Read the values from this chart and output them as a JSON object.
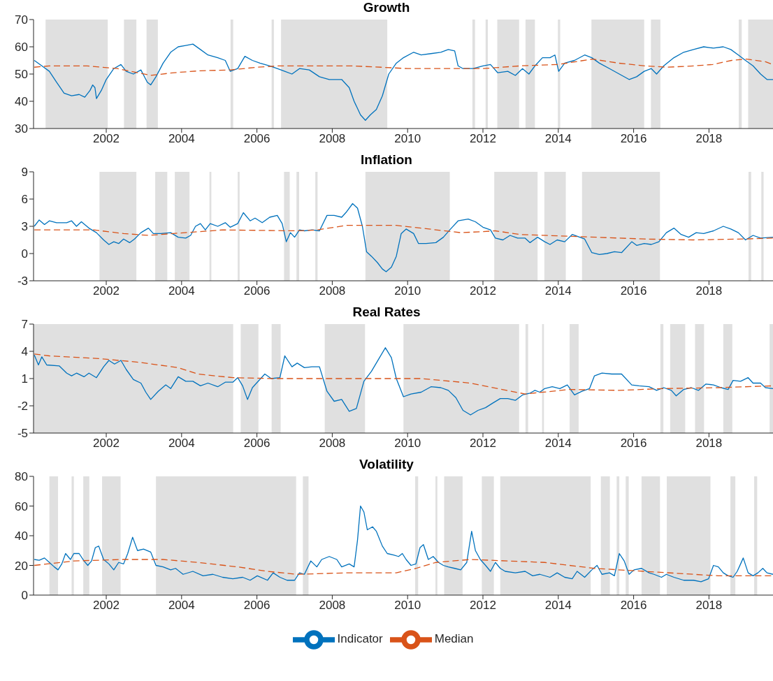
{
  "chart_data": [
    {
      "type": "line",
      "title": "Growth",
      "xlim": [
        2000.07,
        2019.7
      ],
      "xticks": [
        2002,
        2004,
        2006,
        2008,
        2010,
        2012,
        2014,
        2016,
        2018
      ],
      "ylim": [
        30,
        70
      ],
      "yticks": [
        30,
        40,
        50,
        60,
        70
      ],
      "series": [
        {
          "color": "#0072bd",
          "line_style": "solid",
          "x": [
            2000.09,
            2000.29,
            2000.49,
            2000.68,
            2000.88,
            2001.08,
            2001.28,
            2001.43,
            2001.57,
            2001.64,
            2001.7,
            2001.74,
            2001.87,
            2002.0,
            2002.2,
            2002.39,
            2002.53,
            2002.72,
            2002.92,
            2003.09,
            2003.18,
            2003.32,
            2003.51,
            2003.71,
            2003.91,
            2004.11,
            2004.3,
            2004.5,
            2004.7,
            2004.96,
            2005.16,
            2005.29,
            2005.49,
            2005.68,
            2005.88,
            2006.08,
            2006.34,
            2006.54,
            2006.74,
            2006.93,
            2007.13,
            2007.39,
            2007.66,
            2007.92,
            2008.25,
            2008.45,
            2008.58,
            2008.75,
            2008.88,
            2009.01,
            2009.17,
            2009.33,
            2009.5,
            2009.7,
            2009.89,
            2010.16,
            2010.36,
            2010.62,
            2010.88,
            2011.08,
            2011.25,
            2011.34,
            2011.47,
            2011.74,
            2012.0,
            2012.2,
            2012.39,
            2012.66,
            2012.86,
            2013.05,
            2013.22,
            2013.38,
            2013.58,
            2013.78,
            2013.91,
            2014.01,
            2014.17,
            2014.43,
            2014.7,
            2014.89,
            2015.09,
            2015.36,
            2015.62,
            2015.88,
            2016.08,
            2016.28,
            2016.47,
            2016.61,
            2016.8,
            2017.07,
            2017.33,
            2017.59,
            2017.86,
            2018.12,
            2018.38,
            2018.58,
            2018.78,
            2018.97,
            2019.17,
            2019.37,
            2019.54,
            2019.7
          ],
          "values": [
            55,
            53,
            51,
            47,
            43,
            42,
            42.5,
            41.5,
            44,
            46,
            45,
            41,
            44,
            48,
            52,
            53.5,
            51,
            50,
            51.5,
            47,
            46,
            49,
            54,
            58,
            60,
            60.5,
            61,
            59,
            57,
            56,
            55,
            51,
            52,
            56.5,
            55,
            54,
            53,
            52,
            51,
            50,
            52,
            51.5,
            49,
            48,
            48,
            45,
            40,
            35,
            33,
            35,
            37,
            42,
            50,
            54,
            56,
            58,
            57,
            57.5,
            58,
            59,
            58.5,
            53,
            52,
            52,
            53,
            53.5,
            50.5,
            51,
            49.5,
            52,
            50,
            53,
            56,
            56,
            57,
            51,
            54,
            55,
            57,
            56,
            54,
            52,
            50,
            48,
            49,
            51,
            52,
            50,
            53,
            56,
            58,
            59,
            60,
            59.5,
            60,
            59,
            57,
            55,
            53,
            50,
            48,
            48
          ]
        },
        {
          "color": "#d95319",
          "line_style": "dashed",
          "x": [
            2000.09,
            2000.49,
            2001.49,
            2002.3,
            2003.18,
            2003.8,
            2004.5,
            2005.3,
            2006.0,
            2006.6,
            2008.5,
            2009.3,
            2010.0,
            2012.0,
            2013.0,
            2014.0,
            2014.9,
            2015.6,
            2016.3,
            2016.9,
            2017.6,
            2018.1,
            2018.6,
            2019.0,
            2019.5,
            2019.7
          ],
          "values": [
            52.5,
            53,
            53,
            52,
            49.5,
            50.5,
            51.2,
            51.5,
            52.5,
            53,
            53,
            52.5,
            52,
            52,
            53,
            53.5,
            55.5,
            54,
            53,
            52.5,
            53,
            53.5,
            55,
            55.5,
            54.5,
            53.5
          ]
        }
      ],
      "bands": [
        {
          "axis": "x",
          "from": 2000.39,
          "to": 2002.04
        },
        {
          "axis": "x",
          "from": 2002.47,
          "to": 2002.8
        },
        {
          "axis": "x",
          "from": 2003.07,
          "to": 2003.37
        },
        {
          "axis": "x",
          "from": 2005.3,
          "to": 2005.37
        },
        {
          "axis": "x",
          "from": 2006.39,
          "to": 2006.45
        },
        {
          "axis": "x",
          "from": 2006.64,
          "to": 2009.46
        },
        {
          "axis": "x",
          "from": 2011.72,
          "to": 2011.79
        },
        {
          "axis": "x",
          "from": 2012.07,
          "to": 2012.13
        },
        {
          "axis": "x",
          "from": 2012.38,
          "to": 2012.96
        },
        {
          "axis": "x",
          "from": 2013.13,
          "to": 2013.38
        },
        {
          "axis": "x",
          "from": 2013.99,
          "to": 2014.05
        },
        {
          "axis": "x",
          "from": 2014.88,
          "to": 2016.28
        },
        {
          "axis": "x",
          "from": 2016.46,
          "to": 2016.71
        },
        {
          "axis": "x",
          "from": 2018.79,
          "to": 2018.87
        },
        {
          "axis": "x",
          "from": 2019.04,
          "to": 2019.7
        }
      ]
    },
    {
      "type": "line",
      "title": "Inflation",
      "xlim": [
        2000.07,
        2019.7
      ],
      "xticks": [
        2002,
        2004,
        2006,
        2008,
        2010,
        2012,
        2014,
        2016,
        2018
      ],
      "ylim": [
        -3,
        9
      ],
      "yticks": [
        -3,
        0,
        3,
        6,
        9
      ],
      "series": [
        {
          "color": "#0072bd",
          "line_style": "solid",
          "x": [
            2000.09,
            2000.22,
            2000.36,
            2000.49,
            2000.68,
            2000.95,
            2001.08,
            2001.21,
            2001.34,
            2001.54,
            2001.74,
            2001.93,
            2002.07,
            2002.2,
            2002.33,
            2002.46,
            2002.62,
            2002.75,
            2002.92,
            2003.12,
            2003.25,
            2003.45,
            2003.71,
            2003.91,
            2004.11,
            2004.24,
            2004.37,
            2004.5,
            2004.63,
            2004.76,
            2004.96,
            2005.16,
            2005.29,
            2005.49,
            2005.64,
            2005.82,
            2005.95,
            2006.14,
            2006.34,
            2006.54,
            2006.67,
            2006.78,
            2006.89,
            2007.0,
            2007.13,
            2007.26,
            2007.46,
            2007.66,
            2007.86,
            2008.05,
            2008.25,
            2008.38,
            2008.54,
            2008.67,
            2008.8,
            2008.91,
            2009.04,
            2009.2,
            2009.33,
            2009.43,
            2009.57,
            2009.7,
            2009.83,
            2009.96,
            2010.16,
            2010.29,
            2010.49,
            2010.75,
            2010.95,
            2011.14,
            2011.34,
            2011.61,
            2011.8,
            2012.0,
            2012.2,
            2012.33,
            2012.53,
            2012.72,
            2012.92,
            2013.12,
            2013.25,
            2013.45,
            2013.64,
            2013.78,
            2013.97,
            2014.17,
            2014.37,
            2014.57,
            2014.7,
            2014.89,
            2015.09,
            2015.29,
            2015.49,
            2015.68,
            2015.95,
            2016.08,
            2016.28,
            2016.47,
            2016.67,
            2016.87,
            2017.07,
            2017.26,
            2017.46,
            2017.66,
            2017.86,
            2018.12,
            2018.38,
            2018.58,
            2018.78,
            2018.97,
            2019.17,
            2019.37,
            2019.7
          ],
          "values": [
            3,
            3.7,
            3.2,
            3.6,
            3.4,
            3.4,
            3.6,
            3,
            3.5,
            2.8,
            2.3,
            1.5,
            1,
            1.3,
            1.1,
            1.6,
            1.2,
            1.6,
            2.3,
            2.8,
            2.2,
            2.2,
            2.3,
            1.8,
            1.7,
            2,
            3,
            3.3,
            2.6,
            3.3,
            3,
            3.4,
            2.9,
            3.3,
            4.5,
            3.6,
            3.9,
            3.4,
            4,
            4.2,
            3.3,
            1.3,
            2.3,
            1.8,
            2.6,
            2.5,
            2.6,
            2.5,
            4.2,
            4.2,
            4,
            4.6,
            5.5,
            5,
            3,
            0.2,
            -0.3,
            -1,
            -1.7,
            -2,
            -1.5,
            -0.3,
            2.2,
            2.7,
            2.2,
            1.1,
            1.1,
            1.2,
            1.8,
            2.7,
            3.6,
            3.8,
            3.5,
            2.9,
            2.6,
            1.7,
            1.5,
            2,
            1.7,
            1.7,
            1.2,
            1.8,
            1.3,
            1,
            1.5,
            1.3,
            2.1,
            1.8,
            1.6,
            0.1,
            -0.1,
            0,
            0.2,
            0.1,
            1.3,
            0.9,
            1.1,
            1,
            1.3,
            2.3,
            2.8,
            2.1,
            1.8,
            2.3,
            2.2,
            2.5,
            3,
            2.7,
            2.3,
            1.5,
            2,
            1.7,
            1.8
          ]
        },
        {
          "color": "#d95319",
          "line_style": "dashed",
          "x": [
            2000.09,
            2001.67,
            2002.46,
            2003.12,
            2004.43,
            2005.09,
            2007.07,
            2007.59,
            2008.38,
            2009.7,
            2010.36,
            2011.41,
            2011.93,
            2012.33,
            2012.99,
            2014.3,
            2016.28,
            2017.59,
            2018.91,
            2019.7
          ],
          "values": [
            2.6,
            2.6,
            2.2,
            2,
            2.4,
            2.6,
            2.5,
            2.6,
            3.1,
            3.1,
            2.8,
            2.3,
            2.4,
            2.5,
            2.1,
            1.9,
            1.6,
            1.5,
            1.6,
            1.7
          ]
        }
      ],
      "bands": [
        {
          "axis": "x",
          "from": 2001.82,
          "to": 2002.8
        },
        {
          "axis": "x",
          "from": 2003.3,
          "to": 2003.62
        },
        {
          "axis": "x",
          "from": 2003.82,
          "to": 2004.21
        },
        {
          "axis": "x",
          "from": 2004.74,
          "to": 2004.79
        },
        {
          "axis": "x",
          "from": 2005.49,
          "to": 2005.54
        },
        {
          "axis": "x",
          "from": 2006.72,
          "to": 2006.87
        },
        {
          "axis": "x",
          "from": 2007.05,
          "to": 2007.12
        },
        {
          "axis": "x",
          "from": 2007.55,
          "to": 2007.61
        },
        {
          "axis": "x",
          "from": 2008.88,
          "to": 2011.12
        },
        {
          "axis": "x",
          "from": 2012.3,
          "to": 2013.45
        },
        {
          "axis": "x",
          "from": 2013.63,
          "to": 2014.2
        },
        {
          "axis": "x",
          "from": 2014.63,
          "to": 2016.7
        },
        {
          "axis": "x",
          "from": 2019.05,
          "to": 2019.12
        },
        {
          "axis": "x",
          "from": 2019.39,
          "to": 2019.45
        }
      ]
    },
    {
      "type": "line",
      "title": "Real Rates",
      "xlim": [
        2000.07,
        2019.7
      ],
      "xticks": [
        2002,
        2004,
        2006,
        2008,
        2010,
        2012,
        2014,
        2016,
        2018
      ],
      "ylim": [
        -5,
        7
      ],
      "yticks": [
        -5,
        -2,
        1,
        4,
        7
      ],
      "series": [
        {
          "color": "#0072bd",
          "line_style": "solid",
          "x": [
            2000.09,
            2000.2,
            2000.29,
            2000.42,
            2000.75,
            2000.95,
            2001.08,
            2001.21,
            2001.41,
            2001.54,
            2001.74,
            2001.93,
            2002.07,
            2002.22,
            2002.39,
            2002.53,
            2002.72,
            2002.92,
            2003.05,
            2003.18,
            2003.38,
            2003.58,
            2003.71,
            2003.91,
            2004.11,
            2004.3,
            2004.5,
            2004.7,
            2004.96,
            2005.16,
            2005.36,
            2005.49,
            2005.62,
            2005.75,
            2005.88,
            2006.01,
            2006.21,
            2006.38,
            2006.61,
            2006.74,
            2006.93,
            2007.07,
            2007.26,
            2007.46,
            2007.66,
            2007.86,
            2008.05,
            2008.25,
            2008.45,
            2008.64,
            2008.84,
            2009.04,
            2009.24,
            2009.41,
            2009.57,
            2009.7,
            2009.89,
            2010.09,
            2010.36,
            2010.62,
            2010.88,
            2011.08,
            2011.28,
            2011.47,
            2011.67,
            2011.87,
            2012.07,
            2012.26,
            2012.46,
            2012.66,
            2012.86,
            2013.05,
            2013.25,
            2013.38,
            2013.51,
            2013.64,
            2013.84,
            2014.04,
            2014.24,
            2014.43,
            2014.63,
            2014.83,
            2014.96,
            2015.16,
            2015.42,
            2015.68,
            2015.95,
            2016.14,
            2016.41,
            2016.61,
            2016.8,
            2017.0,
            2017.13,
            2017.33,
            2017.53,
            2017.72,
            2017.92,
            2018.12,
            2018.32,
            2018.51,
            2018.64,
            2018.84,
            2019.04,
            2019.17,
            2019.37,
            2019.5,
            2019.7
          ],
          "values": [
            3.6,
            2.5,
            3.4,
            2.5,
            2.4,
            1.6,
            1.3,
            1.6,
            1.2,
            1.6,
            1.1,
            2.3,
            3,
            2.6,
            3,
            2,
            0.9,
            0.5,
            -0.5,
            -1.3,
            -0.4,
            0.3,
            -0.1,
            1.2,
            0.7,
            0.7,
            0.2,
            0.5,
            0.1,
            0.6,
            0.6,
            1.1,
            0.2,
            -1.3,
            0,
            0.6,
            1.5,
            1,
            1.1,
            3.5,
            2.3,
            2.7,
            2.2,
            2.3,
            2.3,
            -0.4,
            -1.5,
            -1.3,
            -2.6,
            -2.3,
            0.7,
            1.8,
            3.2,
            4.4,
            3.3,
            1,
            -1,
            -0.7,
            -0.5,
            0.1,
            0,
            -0.3,
            -1.1,
            -2.5,
            -3,
            -2.5,
            -2.2,
            -1.7,
            -1.2,
            -1.2,
            -1.4,
            -0.8,
            -0.6,
            -0.3,
            -0.5,
            -0.1,
            0.1,
            -0.1,
            0.3,
            -0.8,
            -0.4,
            -0.1,
            1.3,
            1.6,
            1.5,
            1.5,
            0.3,
            0.2,
            0.1,
            -0.3,
            0,
            -0.3,
            -0.9,
            -0.2,
            0,
            -0.3,
            0.4,
            0.3,
            0,
            -0.2,
            0.8,
            0.7,
            1.1,
            0.5,
            0.5,
            0,
            -0.1
          ]
        },
        {
          "color": "#d95319",
          "line_style": "dashed",
          "x": [
            2000.09,
            2000.49,
            2001.8,
            2002.86,
            2003.91,
            2004.43,
            2005.36,
            2006.41,
            2008.38,
            2010.36,
            2011.67,
            2013.12,
            2014.3,
            2015.62,
            2016.8,
            2018.25,
            2019.7
          ],
          "values": [
            3.7,
            3.5,
            3.2,
            2.8,
            2.2,
            1.5,
            1.1,
            1,
            1,
            1,
            0.5,
            -0.7,
            -0.2,
            -0.3,
            -0.1,
            0,
            0.2
          ]
        }
      ],
      "bands": [
        {
          "axis": "x",
          "from": 2000.07,
          "to": 2005.37
        },
        {
          "axis": "x",
          "from": 2005.57,
          "to": 2006.04
        },
        {
          "axis": "x",
          "from": 2006.39,
          "to": 2006.63
        },
        {
          "axis": "x",
          "from": 2007.8,
          "to": 2008.87
        },
        {
          "axis": "x",
          "from": 2009.89,
          "to": 2012.96
        },
        {
          "axis": "x",
          "from": 2013.13,
          "to": 2013.2
        },
        {
          "axis": "x",
          "from": 2013.57,
          "to": 2013.62
        },
        {
          "axis": "x",
          "from": 2014.3,
          "to": 2014.54
        },
        {
          "axis": "x",
          "from": 2016.71,
          "to": 2016.79
        },
        {
          "axis": "x",
          "from": 2016.97,
          "to": 2017.37
        },
        {
          "axis": "x",
          "from": 2017.63,
          "to": 2017.87
        },
        {
          "axis": "x",
          "from": 2018.38,
          "to": 2018.62
        },
        {
          "axis": "x",
          "from": 2019.61,
          "to": 2019.7
        }
      ]
    },
    {
      "type": "line",
      "title": "Volatility",
      "xlim": [
        2000.07,
        2019.7
      ],
      "xticks": [
        2002,
        2004,
        2006,
        2008,
        2010,
        2012,
        2014,
        2016,
        2018
      ],
      "ylim": [
        0,
        80
      ],
      "yticks": [
        0,
        20,
        40,
        60,
        80
      ],
      "legend": "bottom",
      "series": [
        {
          "name": "Indicator",
          "color": "#0072bd",
          "line_style": "solid",
          "x": [
            2000.09,
            2000.22,
            2000.36,
            2000.49,
            2000.62,
            2000.72,
            2000.82,
            2000.92,
            2001.05,
            2001.14,
            2001.28,
            2001.41,
            2001.51,
            2001.61,
            2001.71,
            2001.8,
            2001.93,
            2002.07,
            2002.2,
            2002.33,
            2002.46,
            2002.57,
            2002.7,
            2002.83,
            2002.99,
            2003.18,
            2003.32,
            2003.51,
            2003.71,
            2003.84,
            2004.04,
            2004.3,
            2004.57,
            2004.83,
            2005.09,
            2005.36,
            2005.62,
            2005.82,
            2006.01,
            2006.28,
            2006.43,
            2006.61,
            2006.8,
            2007.0,
            2007.13,
            2007.26,
            2007.43,
            2007.59,
            2007.72,
            2007.92,
            2008.12,
            2008.25,
            2008.45,
            2008.58,
            2008.67,
            2008.75,
            2008.84,
            2008.93,
            2009.07,
            2009.17,
            2009.33,
            2009.46,
            2009.63,
            2009.76,
            2009.86,
            2009.96,
            2010.09,
            2010.22,
            2010.33,
            2010.42,
            2010.55,
            2010.68,
            2010.82,
            2010.95,
            2011.08,
            2011.25,
            2011.41,
            2011.57,
            2011.7,
            2011.8,
            2011.93,
            2012.07,
            2012.2,
            2012.33,
            2012.46,
            2012.59,
            2012.86,
            2013.12,
            2013.32,
            2013.51,
            2013.78,
            2013.97,
            2014.17,
            2014.37,
            2014.5,
            2014.7,
            2014.89,
            2015.03,
            2015.16,
            2015.36,
            2015.49,
            2015.62,
            2015.75,
            2015.88,
            2016.01,
            2016.21,
            2016.41,
            2016.54,
            2016.74,
            2016.87,
            2017.07,
            2017.33,
            2017.59,
            2017.79,
            2017.99,
            2018.12,
            2018.25,
            2018.38,
            2018.51,
            2018.64,
            2018.75,
            2018.84,
            2018.91,
            2019.04,
            2019.17,
            2019.3,
            2019.43,
            2019.54,
            2019.7
          ],
          "values": [
            24,
            23.5,
            25,
            22,
            19,
            17,
            21,
            28,
            24,
            28,
            28,
            23,
            20,
            23,
            32,
            33,
            24,
            21,
            17,
            22,
            21,
            28,
            39,
            30,
            31,
            29,
            20,
            19,
            17,
            18,
            14,
            16,
            13,
            14,
            12,
            11,
            12,
            10,
            13,
            10,
            15,
            12,
            10,
            10,
            15,
            14,
            23,
            19,
            24,
            26,
            24,
            19,
            21,
            19,
            37,
            60,
            56,
            44,
            46,
            43,
            33,
            28,
            27,
            26,
            28,
            24,
            20,
            21,
            32,
            34,
            24,
            26,
            22,
            20,
            19,
            18,
            17,
            22,
            43,
            30,
            24,
            20,
            16,
            22,
            18,
            16,
            15,
            16,
            13,
            14,
            12,
            15,
            12,
            11,
            16,
            12,
            17,
            20,
            14,
            15,
            13,
            28,
            23,
            14,
            17,
            18,
            15,
            14,
            12,
            14,
            12,
            10,
            10,
            9,
            11,
            20,
            19,
            15,
            13,
            12,
            16,
            21,
            25,
            15,
            13,
            15,
            18,
            15,
            14
          ]
        },
        {
          "name": "Median",
          "color": "#d95319",
          "line_style": "dashed",
          "x": [
            2000.09,
            2001.14,
            2002.46,
            2003.51,
            2004.43,
            2005.49,
            2006.28,
            2007.07,
            2008.38,
            2009.7,
            2010.22,
            2010.75,
            2011.67,
            2013.64,
            2014.96,
            2016.28,
            2017.59,
            2018.25,
            2019.7
          ],
          "values": [
            20,
            23,
            24,
            24,
            22,
            19,
            16,
            14,
            15,
            15,
            18,
            22,
            24,
            22,
            18,
            16,
            14,
            13,
            13
          ]
        }
      ],
      "bands": [
        {
          "axis": "x",
          "from": 2000.49,
          "to": 2000.72
        },
        {
          "axis": "x",
          "from": 2001.08,
          "to": 2001.14
        },
        {
          "axis": "x",
          "from": 2001.39,
          "to": 2001.55
        },
        {
          "axis": "x",
          "from": 2001.89,
          "to": 2002.38
        },
        {
          "axis": "x",
          "from": 2003.32,
          "to": 2007.04
        },
        {
          "axis": "x",
          "from": 2007.22,
          "to": 2007.37
        },
        {
          "axis": "x",
          "from": 2010.2,
          "to": 2010.28
        },
        {
          "axis": "x",
          "from": 2010.74,
          "to": 2010.79
        },
        {
          "axis": "x",
          "from": 2010.97,
          "to": 2011.46
        },
        {
          "axis": "x",
          "from": 2011.97,
          "to": 2012.29
        },
        {
          "axis": "x",
          "from": 2012.46,
          "to": 2014.86
        },
        {
          "axis": "x",
          "from": 2015.13,
          "to": 2015.37
        },
        {
          "axis": "x",
          "from": 2015.55,
          "to": 2015.62
        },
        {
          "axis": "x",
          "from": 2015.79,
          "to": 2015.87
        },
        {
          "axis": "x",
          "from": 2016.21,
          "to": 2016.7
        },
        {
          "axis": "x",
          "from": 2016.88,
          "to": 2018.04
        },
        {
          "axis": "x",
          "from": 2018.57,
          "to": 2018.7
        },
        {
          "axis": "x",
          "from": 2019.2,
          "to": 2019.28
        }
      ]
    }
  ]
}
